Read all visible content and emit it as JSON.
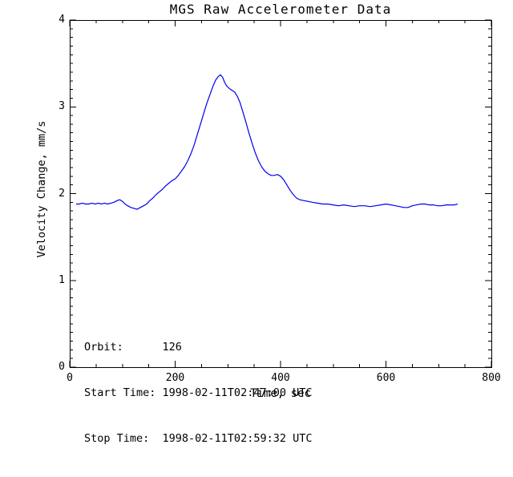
{
  "chart_data": {
    "type": "line",
    "title": "MGS Raw Accelerometer Data",
    "xlabel": "Time, sec",
    "ylabel": "Velocity Change, mm/s",
    "xlim": [
      0,
      800
    ],
    "ylim": [
      0,
      4
    ],
    "x_major_ticks": [
      0,
      200,
      400,
      600,
      800
    ],
    "x_tick_labels": [
      "0",
      "200",
      "400",
      "600",
      "800"
    ],
    "x_minor_tick_interval": 50,
    "y_major_ticks": [
      0,
      1,
      2,
      3,
      4
    ],
    "y_tick_labels": [
      "0",
      "1",
      "2",
      "3",
      "4"
    ],
    "y_minor_tick_interval": 0.1,
    "grid": false,
    "legend": "none",
    "background_color": "#FFFFFF",
    "axis_color": "#000000",
    "line_color": "#0000EE",
    "annotation_lines": [
      "Orbit:      126",
      "Start Time: 1998-02-11T02:47:00 UTC",
      "Stop Time:  1998-02-11T02:59:32 UTC"
    ],
    "annotations": {
      "orbit_label": "Orbit:",
      "orbit_value": "126",
      "start_time_label": "Start Time:",
      "start_time_value": "1998-02-11T02:47:00 UTC",
      "stop_time_label": "Stop Time:",
      "stop_time_value": "1998-02-11T02:59:32 UTC"
    },
    "series": [
      {
        "name": "raw-accelerometer-velocity-change",
        "points": [
          [
            12,
            1.88
          ],
          [
            18,
            1.88
          ],
          [
            24,
            1.89
          ],
          [
            30,
            1.88
          ],
          [
            36,
            1.88
          ],
          [
            42,
            1.89
          ],
          [
            48,
            1.88
          ],
          [
            54,
            1.89
          ],
          [
            60,
            1.88
          ],
          [
            66,
            1.89
          ],
          [
            72,
            1.88
          ],
          [
            78,
            1.89
          ],
          [
            84,
            1.9
          ],
          [
            90,
            1.92
          ],
          [
            95,
            1.93
          ],
          [
            100,
            1.91
          ],
          [
            105,
            1.88
          ],
          [
            110,
            1.86
          ],
          [
            116,
            1.84
          ],
          [
            122,
            1.83
          ],
          [
            128,
            1.82
          ],
          [
            134,
            1.84
          ],
          [
            140,
            1.86
          ],
          [
            146,
            1.88
          ],
          [
            152,
            1.92
          ],
          [
            158,
            1.95
          ],
          [
            164,
            1.99
          ],
          [
            170,
            2.02
          ],
          [
            176,
            2.05
          ],
          [
            182,
            2.09
          ],
          [
            188,
            2.12
          ],
          [
            194,
            2.15
          ],
          [
            200,
            2.17
          ],
          [
            206,
            2.21
          ],
          [
            212,
            2.26
          ],
          [
            218,
            2.31
          ],
          [
            224,
            2.38
          ],
          [
            230,
            2.46
          ],
          [
            236,
            2.56
          ],
          [
            242,
            2.68
          ],
          [
            248,
            2.8
          ],
          [
            254,
            2.92
          ],
          [
            260,
            3.04
          ],
          [
            266,
            3.14
          ],
          [
            272,
            3.24
          ],
          [
            277,
            3.31
          ],
          [
            282,
            3.35
          ],
          [
            286,
            3.37
          ],
          [
            290,
            3.34
          ],
          [
            294,
            3.28
          ],
          [
            298,
            3.24
          ],
          [
            303,
            3.21
          ],
          [
            308,
            3.19
          ],
          [
            313,
            3.17
          ],
          [
            318,
            3.12
          ],
          [
            323,
            3.05
          ],
          [
            328,
            2.95
          ],
          [
            334,
            2.83
          ],
          [
            340,
            2.7
          ],
          [
            346,
            2.58
          ],
          [
            352,
            2.47
          ],
          [
            358,
            2.38
          ],
          [
            364,
            2.31
          ],
          [
            370,
            2.26
          ],
          [
            376,
            2.23
          ],
          [
            382,
            2.21
          ],
          [
            388,
            2.21
          ],
          [
            394,
            2.22
          ],
          [
            400,
            2.2
          ],
          [
            406,
            2.16
          ],
          [
            412,
            2.1
          ],
          [
            418,
            2.04
          ],
          [
            424,
            1.99
          ],
          [
            430,
            1.95
          ],
          [
            436,
            1.93
          ],
          [
            444,
            1.92
          ],
          [
            452,
            1.91
          ],
          [
            460,
            1.9
          ],
          [
            470,
            1.89
          ],
          [
            480,
            1.88
          ],
          [
            490,
            1.88
          ],
          [
            500,
            1.87
          ],
          [
            510,
            1.86
          ],
          [
            520,
            1.87
          ],
          [
            530,
            1.86
          ],
          [
            540,
            1.85
          ],
          [
            550,
            1.86
          ],
          [
            560,
            1.86
          ],
          [
            570,
            1.85
          ],
          [
            580,
            1.86
          ],
          [
            590,
            1.87
          ],
          [
            600,
            1.88
          ],
          [
            610,
            1.87
          ],
          [
            618,
            1.86
          ],
          [
            626,
            1.85
          ],
          [
            634,
            1.84
          ],
          [
            642,
            1.84
          ],
          [
            650,
            1.86
          ],
          [
            658,
            1.87
          ],
          [
            666,
            1.88
          ],
          [
            674,
            1.88
          ],
          [
            682,
            1.87
          ],
          [
            690,
            1.87
          ],
          [
            698,
            1.86
          ],
          [
            706,
            1.86
          ],
          [
            714,
            1.87
          ],
          [
            722,
            1.87
          ],
          [
            730,
            1.87
          ],
          [
            736,
            1.88
          ]
        ]
      }
    ]
  }
}
